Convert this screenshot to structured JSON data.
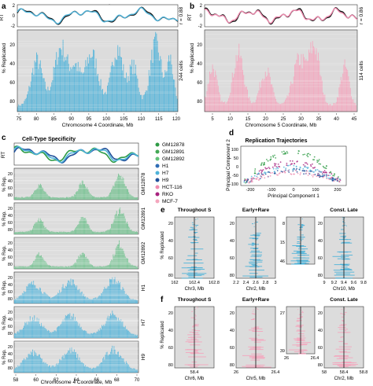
{
  "panels": {
    "a": {
      "letter": "a",
      "title": "H7-hESC",
      "rt_label": "RT",
      "y_label": "% Replicated",
      "x_label": "Chromosome 4 Coordinate, Mb",
      "rt_ticks": [
        "2",
        "0",
        "-2"
      ],
      "y_ticks": [
        "20",
        "40",
        "60",
        "80"
      ],
      "x_ticks": [
        "75",
        "80",
        "85",
        "90",
        "95",
        "100",
        "105",
        "110",
        "115",
        "120"
      ],
      "r_label": "r = 0.88",
      "cells_label": "244 cells",
      "color": "#4fb3d9"
    },
    "b": {
      "letter": "b",
      "title": "MCF-7 Breast Cancer",
      "rt_label": "RT",
      "y_label": "% Replicated",
      "x_label": "Chromosome 5 Coordinate, Mb",
      "rt_ticks": [
        "2",
        "0",
        "-2"
      ],
      "y_ticks": [
        "20",
        "40",
        "60",
        "80"
      ],
      "x_ticks": [
        "5",
        "10",
        "15",
        "20",
        "25",
        "30",
        "35",
        "40",
        "45"
      ],
      "r_label": "r = 0.86",
      "cells_label": "114 cells",
      "color": "#f4a6bd"
    },
    "c": {
      "letter": "c",
      "title": "Cell-Type Specificity",
      "rt_label": "RT",
      "y_label": "% Rep.",
      "x_label": "Chromosome 4 Coordinate, Mb",
      "x_ticks": [
        "58",
        "60",
        "62",
        "64",
        "66",
        "68",
        "70"
      ],
      "y_ticks": [
        "20",
        "40",
        "60",
        "80"
      ],
      "tracks": [
        "GM12878",
        "GM12891",
        "GM12892",
        "H1",
        "H7",
        "H9"
      ]
    },
    "legend": {
      "items": [
        {
          "label": "GM12878",
          "color": "#2e9b45"
        },
        {
          "label": "GM12891",
          "color": "#44a855"
        },
        {
          "label": "GM12892",
          "color": "#63c27a"
        },
        {
          "label": "H1",
          "color": "#2f6db5"
        },
        {
          "label": "H7",
          "color": "#4fb3d9"
        },
        {
          "label": "H9",
          "color": "#1f4f9a"
        },
        {
          "label": "HCT-116",
          "color": "#f08cb0"
        },
        {
          "label": "RKO",
          "color": "#a8227f"
        },
        {
          "label": "MCF-7",
          "color": "#f4a6bd"
        }
      ]
    },
    "d": {
      "letter": "d",
      "title": "Replication Trajectories",
      "x_label": "Principal Component 1",
      "y_label": "Principal Component 2",
      "x_ticks": [
        "-200",
        "-100",
        "0",
        "100",
        "200"
      ],
      "y_ticks": [
        "100",
        "50",
        "0",
        "-50",
        "-100"
      ]
    },
    "e": {
      "letter": "e",
      "y_label": "% Replicated",
      "subpanels": [
        {
          "title": "Throughout S",
          "x_label": "Chr3, Mb",
          "x_ticks": [
            "162",
            "162.4",
            "162.8"
          ],
          "y_ticks": [
            "20",
            "40",
            "60",
            "80"
          ]
        },
        {
          "title": "Early+Rare",
          "x_label": "Chr2, Mb",
          "x_ticks": [
            "2.2",
            "2.4",
            "2.6",
            "2.8",
            "3"
          ],
          "y_ticks": [
            "20",
            "40",
            "60",
            "80"
          ]
        },
        {
          "title": "",
          "x_label": "",
          "x_ticks": [],
          "y_ticks": [
            "8",
            "15",
            "46"
          ]
        },
        {
          "title": "Const. Late",
          "x_label": "Chr10, Mb",
          "x_ticks": [
            "9",
            "9.2",
            "9.4",
            "9.6",
            "9.8"
          ],
          "y_ticks": [
            "20",
            "40",
            "60",
            "80"
          ]
        }
      ]
    },
    "f": {
      "letter": "f",
      "y_label": "% Replicated",
      "subpanels": [
        {
          "title": "Throughout S",
          "x_label": "Chr6, Mb",
          "x_ticks": [
            "58.4"
          ],
          "y_ticks": [
            "20",
            "40",
            "60",
            "80"
          ]
        },
        {
          "title": "Early+Rare",
          "x_label": "Chr5, Mb",
          "x_ticks": [
            "26",
            "26.4"
          ],
          "y_ticks": [
            "20",
            "40",
            "60",
            "80"
          ]
        },
        {
          "title": "",
          "x_label": "",
          "x_ticks": [
            "26",
            "26.4"
          ],
          "y_ticks": [
            "27",
            "39"
          ]
        },
        {
          "title": "Const. Late",
          "x_label": "Chr2, Mb",
          "x_ticks": [
            "58",
            "58.4",
            "58.8"
          ],
          "y_ticks": [
            "20",
            "40",
            "60",
            "80"
          ]
        }
      ]
    }
  }
}
